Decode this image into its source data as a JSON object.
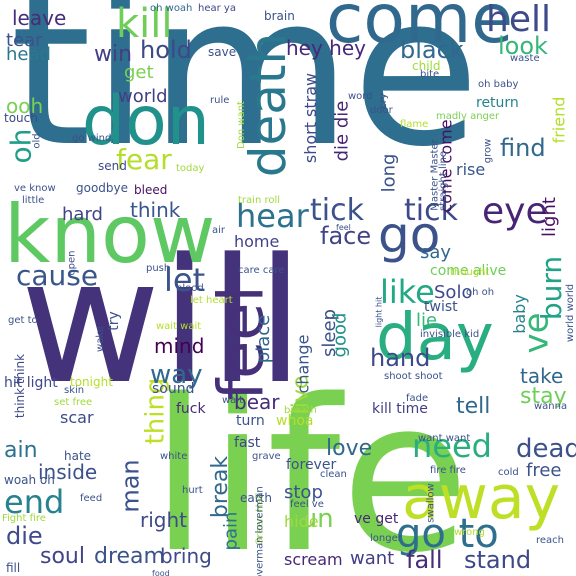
{
  "words": [
    {
      "text": "will",
      "color": "#44337a"
    },
    {
      "text": "time",
      "color": "#2e6e8e"
    },
    {
      "text": "life",
      "color": "#7ad151"
    },
    {
      "text": "know",
      "color": "#5ec962"
    },
    {
      "text": "come",
      "color": "#31688e"
    },
    {
      "text": "don",
      "color": "#21918c"
    },
    {
      "text": "feel",
      "color": "#46307a"
    },
    {
      "text": "away",
      "color": "#bddf26"
    },
    {
      "text": "day",
      "color": "#28ae80"
    },
    {
      "text": "death",
      "color": "#2a788e"
    },
    {
      "text": "go",
      "color": "#3b528b"
    },
    {
      "text": "kill",
      "color": "#6ece58"
    },
    {
      "text": "hell",
      "color": "#3e4a89"
    },
    {
      "text": "eye",
      "color": "#482475"
    },
    {
      "text": "tick",
      "color": "#3b528b"
    },
    {
      "text": "tick",
      "color": "#3e4989"
    },
    {
      "text": "hear",
      "color": "#2c728e"
    },
    {
      "text": "like",
      "color": "#22a884"
    },
    {
      "text": "need",
      "color": "#29af7f"
    },
    {
      "text": "go to",
      "color": "#2d708e"
    },
    {
      "text": "end",
      "color": "#26828e"
    },
    {
      "text": "oh",
      "color": "#1f9e89"
    },
    {
      "text": "ve",
      "color": "#35b779"
    },
    {
      "text": "burn",
      "color": "#20a386"
    },
    {
      "text": "let",
      "color": "#3b528b"
    },
    {
      "text": "cause",
      "color": "#39568c"
    },
    {
      "text": "face",
      "color": "#414487"
    },
    {
      "text": "fear",
      "color": "#b5de2b"
    },
    {
      "text": "black",
      "color": "#31688e"
    },
    {
      "text": "look",
      "color": "#35b779"
    },
    {
      "text": "hold",
      "color": "#3e4989"
    },
    {
      "text": "win",
      "color": "#433e85"
    },
    {
      "text": "leave",
      "color": "#472c7a"
    },
    {
      "text": "find",
      "color": "#31688e"
    },
    {
      "text": "hey hey",
      "color": "#482878"
    },
    {
      "text": "tear",
      "color": "#3b528b"
    },
    {
      "text": "head",
      "color": "#2a788e"
    },
    {
      "text": "get",
      "color": "#7ad151"
    },
    {
      "text": "world",
      "color": "#433e85"
    },
    {
      "text": "ooh",
      "color": "#7ad151"
    },
    {
      "text": "think",
      "color": "#39568c"
    },
    {
      "text": "hard",
      "color": "#414487"
    },
    {
      "text": "thing",
      "color": "#bddf26"
    },
    {
      "text": "mind",
      "color": "#440154"
    },
    {
      "text": "way",
      "color": "#31688e"
    },
    {
      "text": "man",
      "color": "#3b528b"
    },
    {
      "text": "right",
      "color": "#3e4a89"
    },
    {
      "text": "ain",
      "color": "#2c728e"
    },
    {
      "text": "inside",
      "color": "#3b528b"
    },
    {
      "text": "die",
      "color": "#3e4a89"
    },
    {
      "text": "soul",
      "color": "#414487"
    },
    {
      "text": "dream",
      "color": "#3b528b"
    },
    {
      "text": "bring",
      "color": "#3e4989"
    },
    {
      "text": "break",
      "color": "#31688e"
    },
    {
      "text": "pain",
      "color": "#2c728e"
    },
    {
      "text": "run",
      "color": "#7ad151"
    },
    {
      "text": "stop",
      "color": "#3b528b"
    },
    {
      "text": "hide",
      "color": "#9fda3a"
    },
    {
      "text": "want",
      "color": "#433e85"
    },
    {
      "text": "scream",
      "color": "#482878"
    },
    {
      "text": "fall",
      "color": "#472c7a"
    },
    {
      "text": "stand",
      "color": "#3e4989"
    },
    {
      "text": "dead",
      "color": "#3b528b"
    },
    {
      "text": "free",
      "color": "#3b528b"
    },
    {
      "text": "love",
      "color": "#31688e"
    },
    {
      "text": "stay",
      "color": "#6ece58"
    },
    {
      "text": "take",
      "color": "#31688e"
    },
    {
      "text": "tell",
      "color": "#31688e"
    },
    {
      "text": "hand",
      "color": "#3e4989"
    },
    {
      "text": "live",
      "color": "#9fda3a"
    },
    {
      "text": "sleep",
      "color": "#3b528b"
    },
    {
      "text": "good",
      "color": "#21918c"
    },
    {
      "text": "die die",
      "color": "#482475"
    },
    {
      "text": "long",
      "color": "#3b528b"
    },
    {
      "text": "come come",
      "color": "#471063"
    },
    {
      "text": "light",
      "color": "#471063"
    },
    {
      "text": "say",
      "color": "#31688e"
    },
    {
      "text": "Solo",
      "color": "#3e4a89"
    },
    {
      "text": "come alive",
      "color": "#6ece58"
    },
    {
      "text": "twist",
      "color": "#3b528b"
    },
    {
      "text": "baby",
      "color": "#26828e"
    },
    {
      "text": "lie",
      "color": "#35b779"
    },
    {
      "text": "bear",
      "color": "#472c7a"
    },
    {
      "text": "place",
      "color": "#31688e"
    },
    {
      "text": "change",
      "color": "#39568c"
    },
    {
      "text": "home",
      "color": "#414487"
    },
    {
      "text": "short straw",
      "color": "#3e4989"
    },
    {
      "text": "rise",
      "color": "#39568c"
    },
    {
      "text": "return",
      "color": "#26828e"
    },
    {
      "text": "friend",
      "color": "#b5de2b"
    },
    {
      "text": "fuck",
      "color": "#472c7a"
    },
    {
      "text": "sound",
      "color": "#3b528b"
    },
    {
      "text": "whoa",
      "color": "#b5de2b"
    },
    {
      "text": "fast",
      "color": "#3e4989"
    },
    {
      "text": "forever",
      "color": "#3b528b"
    },
    {
      "text": "ve get",
      "color": "#482878"
    },
    {
      "text": "earth",
      "color": "#3b528b"
    },
    {
      "text": "scar",
      "color": "#3e4989"
    },
    {
      "text": "hit light",
      "color": "#3e4989"
    },
    {
      "text": "tonight",
      "color": "#b5de2b"
    },
    {
      "text": "kill time",
      "color": "#433e85"
    },
    {
      "text": "bleed",
      "color": "#471063"
    },
    {
      "text": "goodbye",
      "color": "#3b528b"
    },
    {
      "text": "send",
      "color": "#3e4989"
    },
    {
      "text": "touch",
      "color": "#3e4989"
    },
    {
      "text": "brain",
      "color": "#3b528b"
    },
    {
      "text": "save",
      "color": "#3b528b"
    },
    {
      "text": "hear ya",
      "color": "#3e4989"
    },
    {
      "text": "oh woah",
      "color": "#31688e"
    },
    {
      "text": "waste",
      "color": "#3b528b"
    },
    {
      "text": "child",
      "color": "#9fda3a"
    },
    {
      "text": "bite",
      "color": "#3b528b"
    },
    {
      "text": "oh baby",
      "color": "#3b528b"
    },
    {
      "text": "madly anger",
      "color": "#7ad151"
    },
    {
      "text": "cry",
      "color": "#3e4989"
    },
    {
      "text": "flame",
      "color": "#b5de2b"
    },
    {
      "text": "Master Master",
      "color": "#3b528b"
    },
    {
      "text": "grow",
      "color": "#3b528b"
    },
    {
      "text": "straight line",
      "color": "#3b528b"
    },
    {
      "text": "Don want",
      "color": "#9fda3a"
    },
    {
      "text": "door",
      "color": "#3b528b"
    },
    {
      "text": "word",
      "color": "#3b528b"
    },
    {
      "text": "rule",
      "color": "#3b528b"
    },
    {
      "text": "old",
      "color": "#3b528b"
    },
    {
      "text": "go wind",
      "color": "#3b528b"
    },
    {
      "text": "ve know",
      "color": "#3b528b"
    },
    {
      "text": "little",
      "color": "#3b528b"
    },
    {
      "text": "today",
      "color": "#9fda3a"
    },
    {
      "text": "train roll",
      "color": "#9fda3a"
    },
    {
      "text": "feel",
      "color": "#3b528b"
    },
    {
      "text": "air",
      "color": "#3b528b"
    },
    {
      "text": "care care",
      "color": "#3b528b"
    },
    {
      "text": "blood",
      "color": "#3b528b"
    },
    {
      "text": "let heart",
      "color": "#b5de2b"
    },
    {
      "text": "open",
      "color": "#3b528b"
    },
    {
      "text": "push",
      "color": "#3b528b"
    },
    {
      "text": "get to",
      "color": "#3b528b"
    },
    {
      "text": "try",
      "color": "#3b528b"
    },
    {
      "text": "wait wait",
      "color": "#b5de2b"
    },
    {
      "text": "wake",
      "color": "#3b528b"
    },
    {
      "text": "skin",
      "color": "#3b528b"
    },
    {
      "text": "set free",
      "color": "#9fda3a"
    },
    {
      "text": "think think",
      "color": "#3e4989"
    },
    {
      "text": "wait",
      "color": "#3b528b"
    },
    {
      "text": "breath",
      "color": "#9fda3a"
    },
    {
      "text": "shoot shoot",
      "color": "#3b528b"
    },
    {
      "text": "light hit",
      "color": "#3b528b"
    },
    {
      "text": "oh oh",
      "color": "#3b528b"
    },
    {
      "text": "invisible kid",
      "color": "#3b528b"
    },
    {
      "text": "thought",
      "color": "#b5de2b"
    },
    {
      "text": "world world",
      "color": "#3b528b"
    },
    {
      "text": "wanna",
      "color": "#3b528b"
    },
    {
      "text": "fade",
      "color": "#3b528b"
    },
    {
      "text": "want want",
      "color": "#3b528b"
    },
    {
      "text": "fire fire",
      "color": "#3b528b"
    },
    {
      "text": "cold",
      "color": "#3b528b"
    },
    {
      "text": "clean",
      "color": "#3b528b"
    },
    {
      "text": "grave",
      "color": "#3b528b"
    },
    {
      "text": "white",
      "color": "#3b528b"
    },
    {
      "text": "hate",
      "color": "#3b528b"
    },
    {
      "text": "woah oh",
      "color": "#3b528b"
    },
    {
      "text": "hurt",
      "color": "#3b528b"
    },
    {
      "text": "feed",
      "color": "#3b528b"
    },
    {
      "text": "Fight fire",
      "color": "#9fda3a"
    },
    {
      "text": "Green Hell",
      "color": "#9fda3a"
    },
    {
      "text": "loverman loverman",
      "color": "#3b528b"
    },
    {
      "text": "feel ve",
      "color": "#3b528b"
    },
    {
      "text": "swallow",
      "color": "#3b528b"
    },
    {
      "text": "wrong",
      "color": "#b5de2b"
    },
    {
      "text": "longer",
      "color": "#3b528b"
    },
    {
      "text": "reach",
      "color": "#3b528b"
    },
    {
      "text": "food",
      "color": "#3b528b"
    },
    {
      "text": "fill",
      "color": "#3b528b"
    },
    {
      "text": "turn",
      "color": "#3b528b"
    }
  ]
}
